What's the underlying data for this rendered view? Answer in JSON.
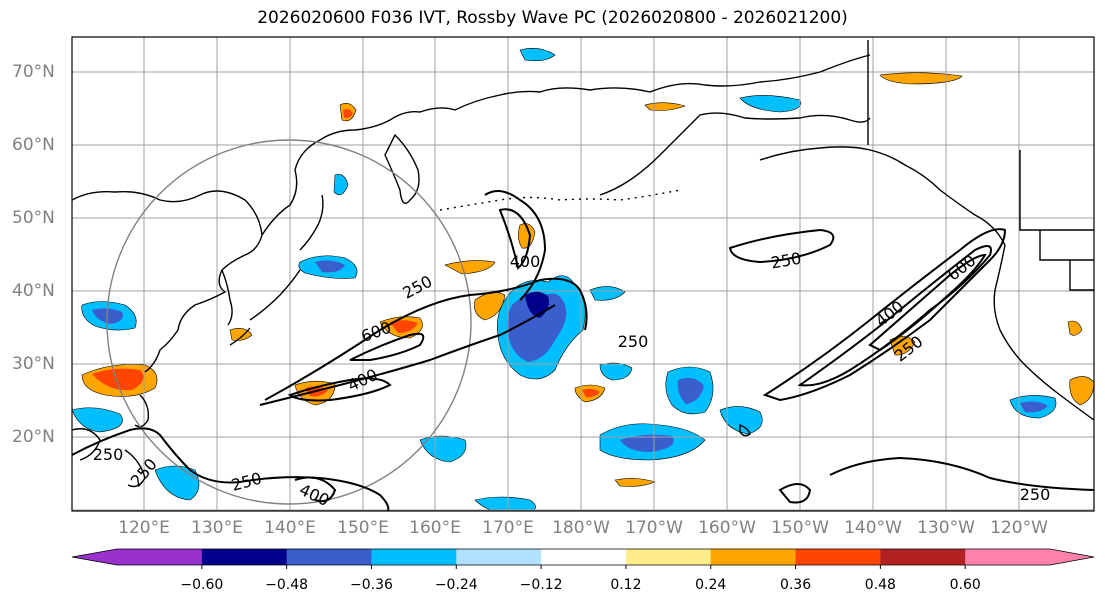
{
  "title": "2026020600 F036 IVT, Rossby Wave PC (2026020800 - 2026021200)",
  "lat_labels": [
    "70°N",
    "60°N",
    "50°N",
    "40°N",
    "30°N",
    "20°N"
  ],
  "lon_labels": [
    "120°E",
    "130°E",
    "140°E",
    "150°E",
    "160°E",
    "170°E",
    "180°W",
    "170°W",
    "160°W",
    "150°W",
    "140°W",
    "130°W",
    "120°W"
  ],
  "contour_labels": [
    "250",
    "400",
    "600"
  ],
  "colorbar": {
    "tick_labels": [
      "−0.60",
      "−0.48",
      "−0.36",
      "−0.24",
      "−0.12",
      "0.12",
      "0.24",
      "0.36",
      "0.48",
      "0.60"
    ],
    "colors": [
      "#9932cc",
      "#00008b",
      "#3a5fcd",
      "#00bfff",
      "#b0e2ff",
      "#ffffff",
      "#ffec8b",
      "#ffa500",
      "#ff4500",
      "#b22222",
      "#ff82ab",
      "#ff82ab"
    ]
  }
}
